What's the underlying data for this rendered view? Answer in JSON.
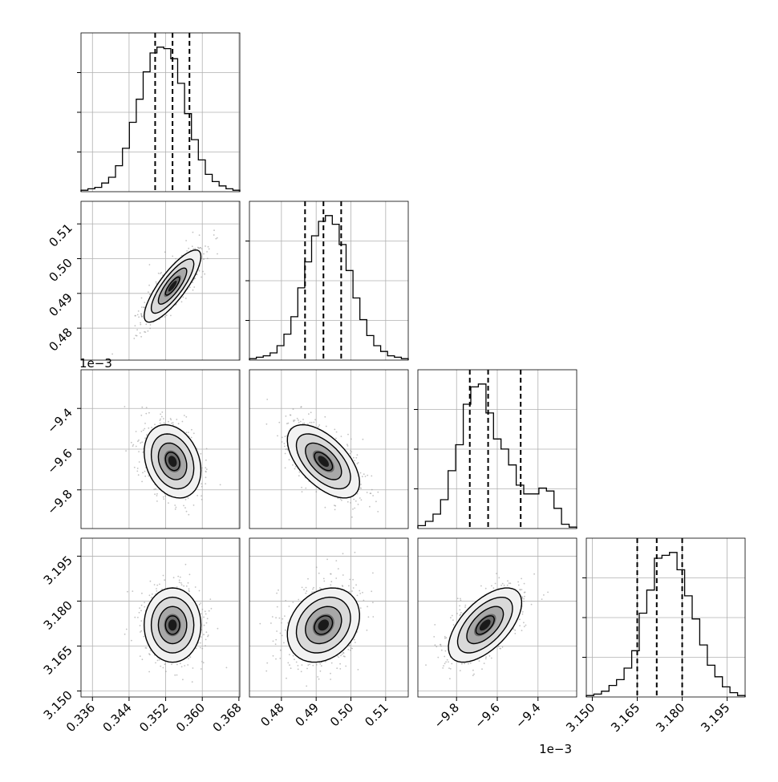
{
  "chart_data": {
    "type": "corner",
    "n_params": 4,
    "params": [
      {
        "range": [
          0.3335,
          0.3682
        ],
        "ticks": [
          0.336,
          0.344,
          0.352,
          0.36,
          0.368
        ],
        "tick_labels": [
          "0.336",
          "0.344",
          "0.352",
          "0.360",
          "0.368"
        ],
        "offset_label": "",
        "quantiles": [
          0.3497,
          0.3535,
          0.3572
        ],
        "hist": [
          1,
          2,
          3,
          6,
          10,
          18,
          30,
          48,
          64,
          83,
          96,
          100,
          99,
          92,
          75,
          54,
          36,
          22,
          12,
          7,
          4,
          2,
          1
        ],
        "mean": 0.3535,
        "sd": 0.0031
      },
      {
        "range": [
          0.4708,
          0.5165
        ],
        "ticks": [
          0.48,
          0.49,
          0.5,
          0.51
        ],
        "tick_labels": [
          "0.48",
          "0.49",
          "0.50",
          "0.51"
        ],
        "offset_label": "",
        "quantiles": [
          0.4868,
          0.4921,
          0.4972
        ],
        "hist": [
          1,
          2,
          3,
          5,
          10,
          18,
          30,
          50,
          68,
          86,
          96,
          100,
          94,
          80,
          62,
          43,
          28,
          17,
          10,
          6,
          3,
          2,
          1
        ],
        "mean": 0.4921,
        "sd": 0.0052
      },
      {
        "range": [
          -9.99,
          -9.21
        ],
        "ticks": [
          -9.8,
          -9.6,
          -9.4
        ],
        "tick_labels": [
          "−9.8",
          "−9.6",
          "−9.4"
        ],
        "offset_label": "1e−3",
        "quantiles": [
          -9.735,
          -9.645,
          -9.485
        ],
        "hist": [
          2,
          5,
          10,
          20,
          40,
          58,
          86,
          98,
          100,
          80,
          62,
          55,
          44,
          30,
          24,
          24,
          28,
          26,
          14,
          3,
          1
        ],
        "mean": -9.66,
        "sd": 0.09
      },
      {
        "range": [
          3.148,
          3.201
        ],
        "ticks": [
          3.15,
          3.165,
          3.18,
          3.195
        ],
        "tick_labels": [
          "3.150",
          "3.165",
          "3.180",
          "3.195"
        ],
        "offset_label": "",
        "quantiles": [
          3.165,
          3.1715,
          3.18
        ],
        "hist": [
          1,
          2,
          4,
          8,
          12,
          20,
          32,
          58,
          74,
          96,
          98,
          100,
          88,
          70,
          54,
          36,
          22,
          14,
          7,
          3,
          1
        ],
        "mean": 3.172,
        "sd": 0.0062
      }
    ],
    "correlations": [
      {
        "row": 1,
        "col": 0,
        "rho": 0.82
      },
      {
        "row": 2,
        "col": 0,
        "rho": -0.25
      },
      {
        "row": 2,
        "col": 1,
        "rho": -0.58
      },
      {
        "row": 3,
        "col": 0,
        "rho": 0.0
      },
      {
        "row": 3,
        "col": 1,
        "rho": 0.25
      },
      {
        "row": 3,
        "col": 2,
        "rho": 0.6
      }
    ],
    "contour_levels_sigma": [
      0.5,
      1.0,
      1.5,
      2.0
    ],
    "grid": true,
    "colors": {
      "hist": "#000000",
      "points": "#9a9a9a",
      "density_dark": "#000000",
      "grid": "#b0b0b0"
    }
  }
}
